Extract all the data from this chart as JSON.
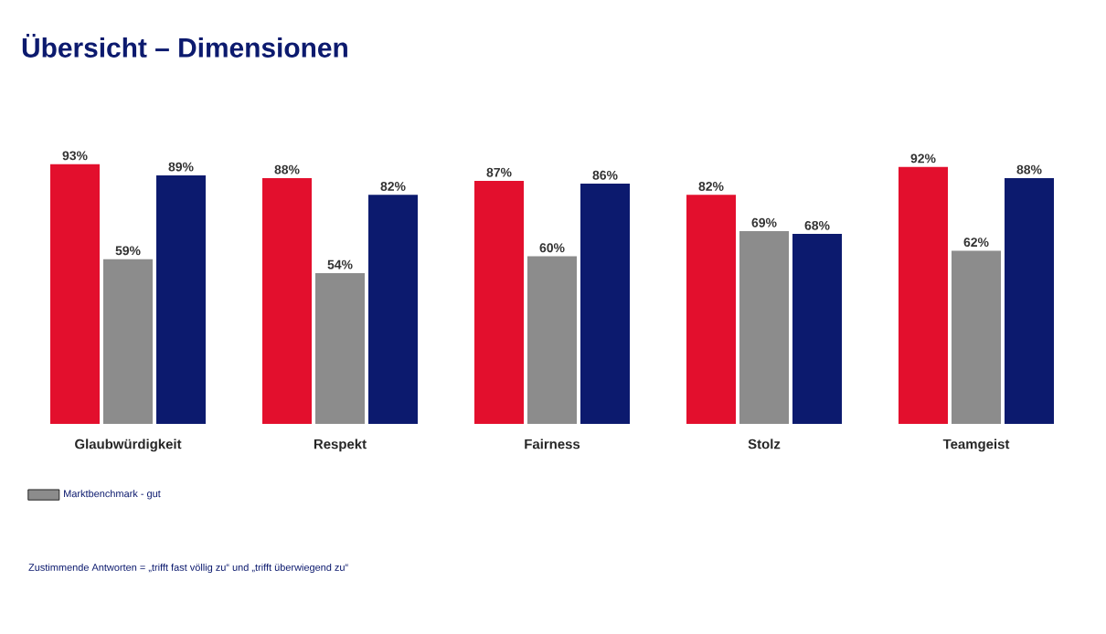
{
  "chart_data": {
    "type": "bar",
    "title": "Übersicht – Dimensionen",
    "categories": [
      "Glaubwürdigkeit",
      "Respekt",
      "Fairness",
      "Stolz",
      "Teamgeist"
    ],
    "series": [
      {
        "color": "#e30f2d",
        "values": [
          93,
          88,
          87,
          82,
          92
        ],
        "value_labels": [
          "93%",
          "88%",
          "87%",
          "82%",
          "92%"
        ]
      },
      {
        "name": "Marktbenchmark - gut",
        "color": "#8c8c8c",
        "values": [
          59,
          54,
          60,
          69,
          62
        ],
        "value_labels": [
          "59%",
          "54%",
          "60%",
          "69%",
          "62%"
        ]
      },
      {
        "color": "#0c1a6e",
        "values": [
          89,
          82,
          86,
          68,
          88
        ],
        "value_labels": [
          "89%",
          "82%",
          "86%",
          "68%",
          "88%"
        ]
      }
    ],
    "legend": "bottom left",
    "annotations": [
      "Zustimmende Antworten = „trifft fast völlig zu“ und „trifft überwiegend zu“"
    ]
  }
}
